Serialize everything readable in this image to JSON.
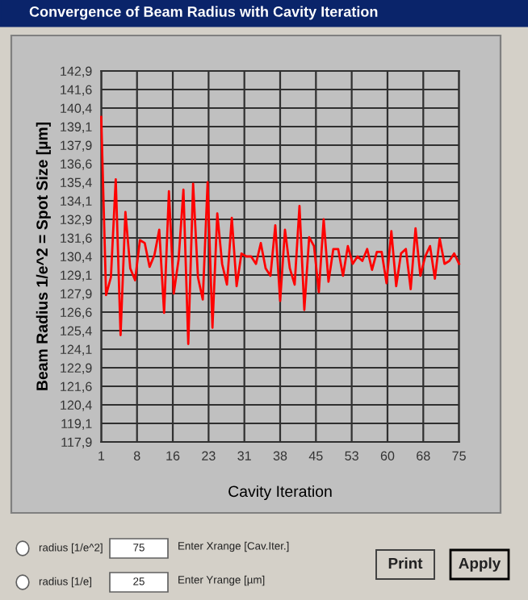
{
  "chart_data": {
    "type": "line",
    "title": "Convergence of Beam Radius with Cavity Iteration",
    "xlabel": "Cavity Iteration",
    "ylabel": "Beam Radius 1/e^2 = Spot Size [µm]",
    "x": [
      1,
      2,
      3,
      4,
      5,
      6,
      7,
      8,
      9,
      10,
      11,
      12,
      13,
      14,
      15,
      16,
      17,
      18,
      19,
      20,
      21,
      22,
      23,
      24,
      25,
      26,
      27,
      28,
      29,
      30,
      31,
      32,
      33,
      34,
      35,
      36,
      37,
      38,
      39,
      40,
      41,
      42,
      43,
      44,
      45,
      46,
      47,
      48,
      49,
      50,
      51,
      52,
      53,
      54,
      55,
      56,
      57,
      58,
      59,
      60,
      61,
      62,
      63,
      64,
      65,
      66,
      67,
      68,
      69,
      70,
      71,
      72,
      73,
      74,
      75
    ],
    "series": [
      {
        "color": "#ff0000",
        "values": [
          139.8,
          127.8,
          129.0,
          135.6,
          125.1,
          133.4,
          129.6,
          128.8,
          131.5,
          131.3,
          129.7,
          130.5,
          132.2,
          126.6,
          134.8,
          127.9,
          130.2,
          134.9,
          124.5,
          135.3,
          129.0,
          127.5,
          135.4,
          125.6,
          133.3,
          129.9,
          128.5,
          133.0,
          128.4,
          130.6,
          130.4,
          130.4,
          129.9,
          131.3,
          129.6,
          129.1,
          132.5,
          127.4,
          132.2,
          129.6,
          128.5,
          133.8,
          126.8,
          131.7,
          131.1,
          128.0,
          132.9,
          128.7,
          130.9,
          130.9,
          129.1,
          131.1,
          129.9,
          130.4,
          130.1,
          130.9,
          129.5,
          130.7,
          130.7,
          128.6,
          132.1,
          128.4,
          130.6,
          130.9,
          128.2,
          132.3,
          129.1,
          130.4,
          131.1,
          128.9,
          131.6,
          129.9,
          130.1,
          130.6,
          129.9
        ]
      }
    ],
    "xlim": [
      1,
      75
    ],
    "ylim": [
      117.9,
      142.9
    ],
    "xticks": [
      1,
      {
        "value": 8.4,
        "label": "8"
      },
      {
        "value": 15.8,
        "label": "16"
      },
      {
        "value": 23.2,
        "label": "23"
      },
      {
        "value": 30.6,
        "label": "31"
      },
      38,
      {
        "value": 45.4,
        "label": "45"
      },
      {
        "value": 52.8,
        "label": "53"
      },
      {
        "value": 60.2,
        "label": "60"
      },
      {
        "value": 67.6,
        "label": "68"
      },
      75
    ],
    "yticks": [
      {
        "value": 117.9,
        "label": "117,9"
      },
      {
        "value": 119.15,
        "label": "119,1"
      },
      {
        "value": 120.4,
        "label": "120,4"
      },
      {
        "value": 121.65,
        "label": "121,6"
      },
      {
        "value": 122.9,
        "label": "122,9"
      },
      {
        "value": 124.15,
        "label": "124,1"
      },
      {
        "value": 125.4,
        "label": "125,4"
      },
      {
        "value": 126.65,
        "label": "126,6"
      },
      {
        "value": 127.9,
        "label": "127,9"
      },
      {
        "value": 129.15,
        "label": "129,1"
      },
      {
        "value": 130.4,
        "label": "130,4"
      },
      {
        "value": 131.65,
        "label": "131,6"
      },
      {
        "value": 132.9,
        "label": "132,9"
      },
      {
        "value": 134.15,
        "label": "134,1"
      },
      {
        "value": 135.4,
        "label": "135,4"
      },
      {
        "value": 136.65,
        "label": "136,6"
      },
      {
        "value": 137.9,
        "label": "137,9"
      },
      {
        "value": 139.15,
        "label": "139,1"
      },
      {
        "value": 140.4,
        "label": "140,4"
      },
      {
        "value": 141.65,
        "label": "141,6"
      },
      {
        "value": 142.9,
        "label": "142,9"
      }
    ],
    "grid": true,
    "annotations": [
      "radius [1/e^2]",
      "75",
      "Enter Xrange [Cav.Iter.]",
      "radius [1/e]",
      "25",
      "Enter Yrange [µm]",
      "Print",
      "Apply"
    ]
  }
}
